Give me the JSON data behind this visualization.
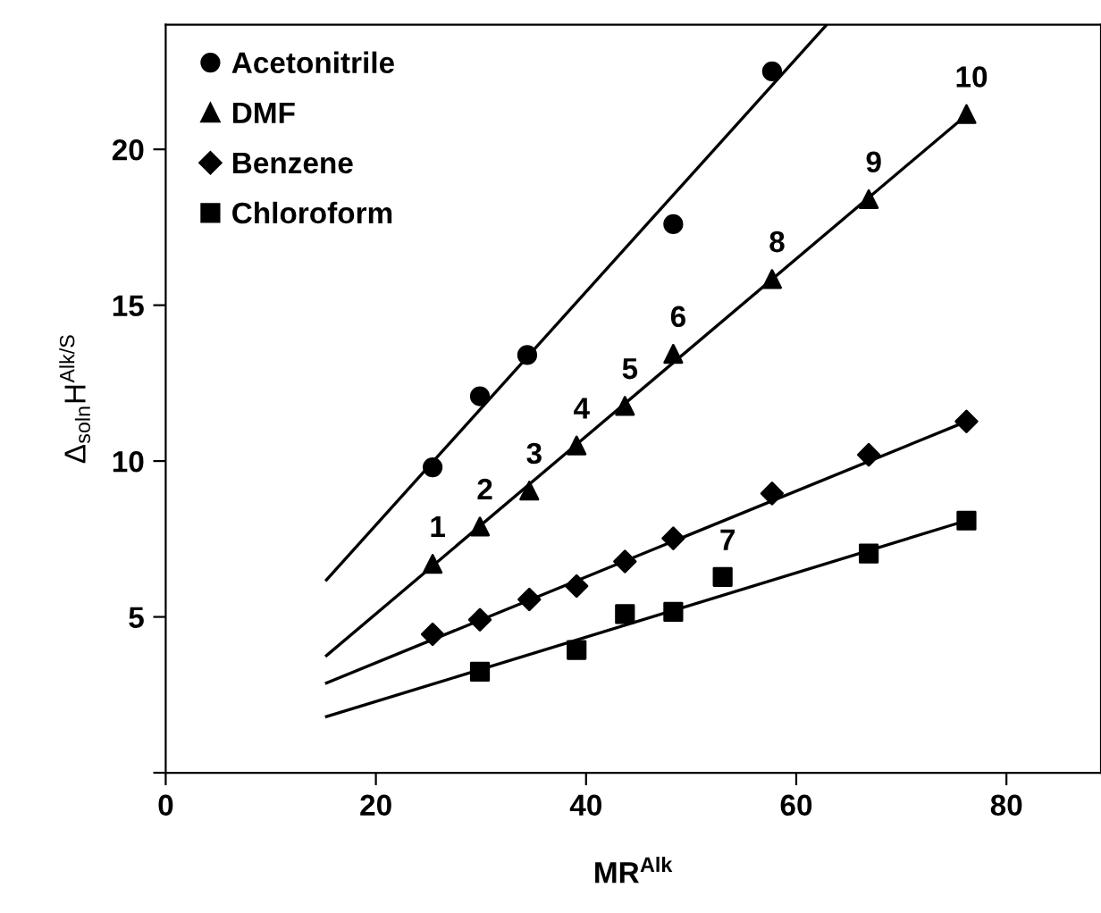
{
  "chart_data": {
    "type": "scatter",
    "xlabel": "MR$^{Alk}$",
    "ylabel": "Δ$_{soln}$H$^{Alk/S}$",
    "xlim": [
      0,
      89
    ],
    "xticks": [
      0,
      20,
      40,
      60,
      80
    ],
    "ylim": [
      0,
      24
    ],
    "yticks": [
      {
        "value": 0,
        "label": null
      },
      5,
      10,
      15,
      20
    ],
    "grid": false,
    "legend": "top left",
    "series": [
      {
        "name": "Acetonitrile",
        "marker": "circle",
        "color": "#000000",
        "x": [
          25.4,
          29.9,
          34.4,
          48.3,
          57.7
        ],
        "values": [
          9.8,
          12.08,
          13.4,
          17.6,
          22.5
        ]
      },
      {
        "name": "DMF",
        "marker": "triangle",
        "color": "#000000",
        "x": [
          25.4,
          29.9,
          34.6,
          39.1,
          43.7,
          48.3,
          57.7,
          66.9,
          76.2
        ],
        "values": [
          6.7,
          7.9,
          9.05,
          10.5,
          11.77,
          13.44,
          15.84,
          18.4,
          21.13
        ]
      },
      {
        "name": "Benzene",
        "marker": "diamond",
        "color": "#000000",
        "x": [
          25.4,
          29.9,
          34.6,
          39.1,
          43.7,
          48.3,
          57.7,
          66.9,
          76.2
        ],
        "values": [
          4.44,
          4.91,
          5.56,
          5.99,
          6.78,
          7.52,
          8.96,
          10.2,
          11.27
        ]
      },
      {
        "name": "Chloroform",
        "marker": "square",
        "color": "#000000",
        "x": [
          29.9,
          39.1,
          43.7,
          48.3,
          53.0,
          66.9,
          76.2
        ],
        "values": [
          3.24,
          3.94,
          5.09,
          5.16,
          6.28,
          7.03,
          8.09
        ]
      },
      {
        "type": "line",
        "marker": "none",
        "line_style": "solid",
        "color": "#000000",
        "x": [
          15.3,
          62.9
        ],
        "values": [
          6.19,
          24
        ]
      },
      {
        "type": "line",
        "marker": "none",
        "line_style": "solid",
        "color": "#000000",
        "x": [
          15.3,
          76.2
        ],
        "values": [
          3.76,
          21.1
        ]
      },
      {
        "type": "line",
        "marker": "none",
        "line_style": "solid",
        "color": "#000000",
        "x": [
          15.3,
          76.2
        ],
        "values": [
          2.88,
          11.27
        ]
      },
      {
        "type": "line",
        "marker": "none",
        "line_style": "solid",
        "color": "#000000",
        "x": [
          15.3,
          76.2
        ],
        "values": [
          1.8,
          8.09
        ]
      }
    ],
    "annotations": [
      {
        "text": "1",
        "x": 25.4,
        "y": 6.7
      },
      {
        "text": "2",
        "x": 29.9,
        "y": 7.9
      },
      {
        "text": "3",
        "x": 34.6,
        "y": 9.05
      },
      {
        "text": "4",
        "x": 39.1,
        "y": 10.5
      },
      {
        "text": "5",
        "x": 43.7,
        "y": 11.77
      },
      {
        "text": "6",
        "x": 48.3,
        "y": 13.44
      },
      {
        "text": "7",
        "x": 53.0,
        "y": 6.28
      },
      {
        "text": "8",
        "x": 57.7,
        "y": 15.84
      },
      {
        "text": "9",
        "x": 66.9,
        "y": 18.4
      },
      {
        "text": "10",
        "x": 76.2,
        "y": 21.13
      }
    ]
  }
}
